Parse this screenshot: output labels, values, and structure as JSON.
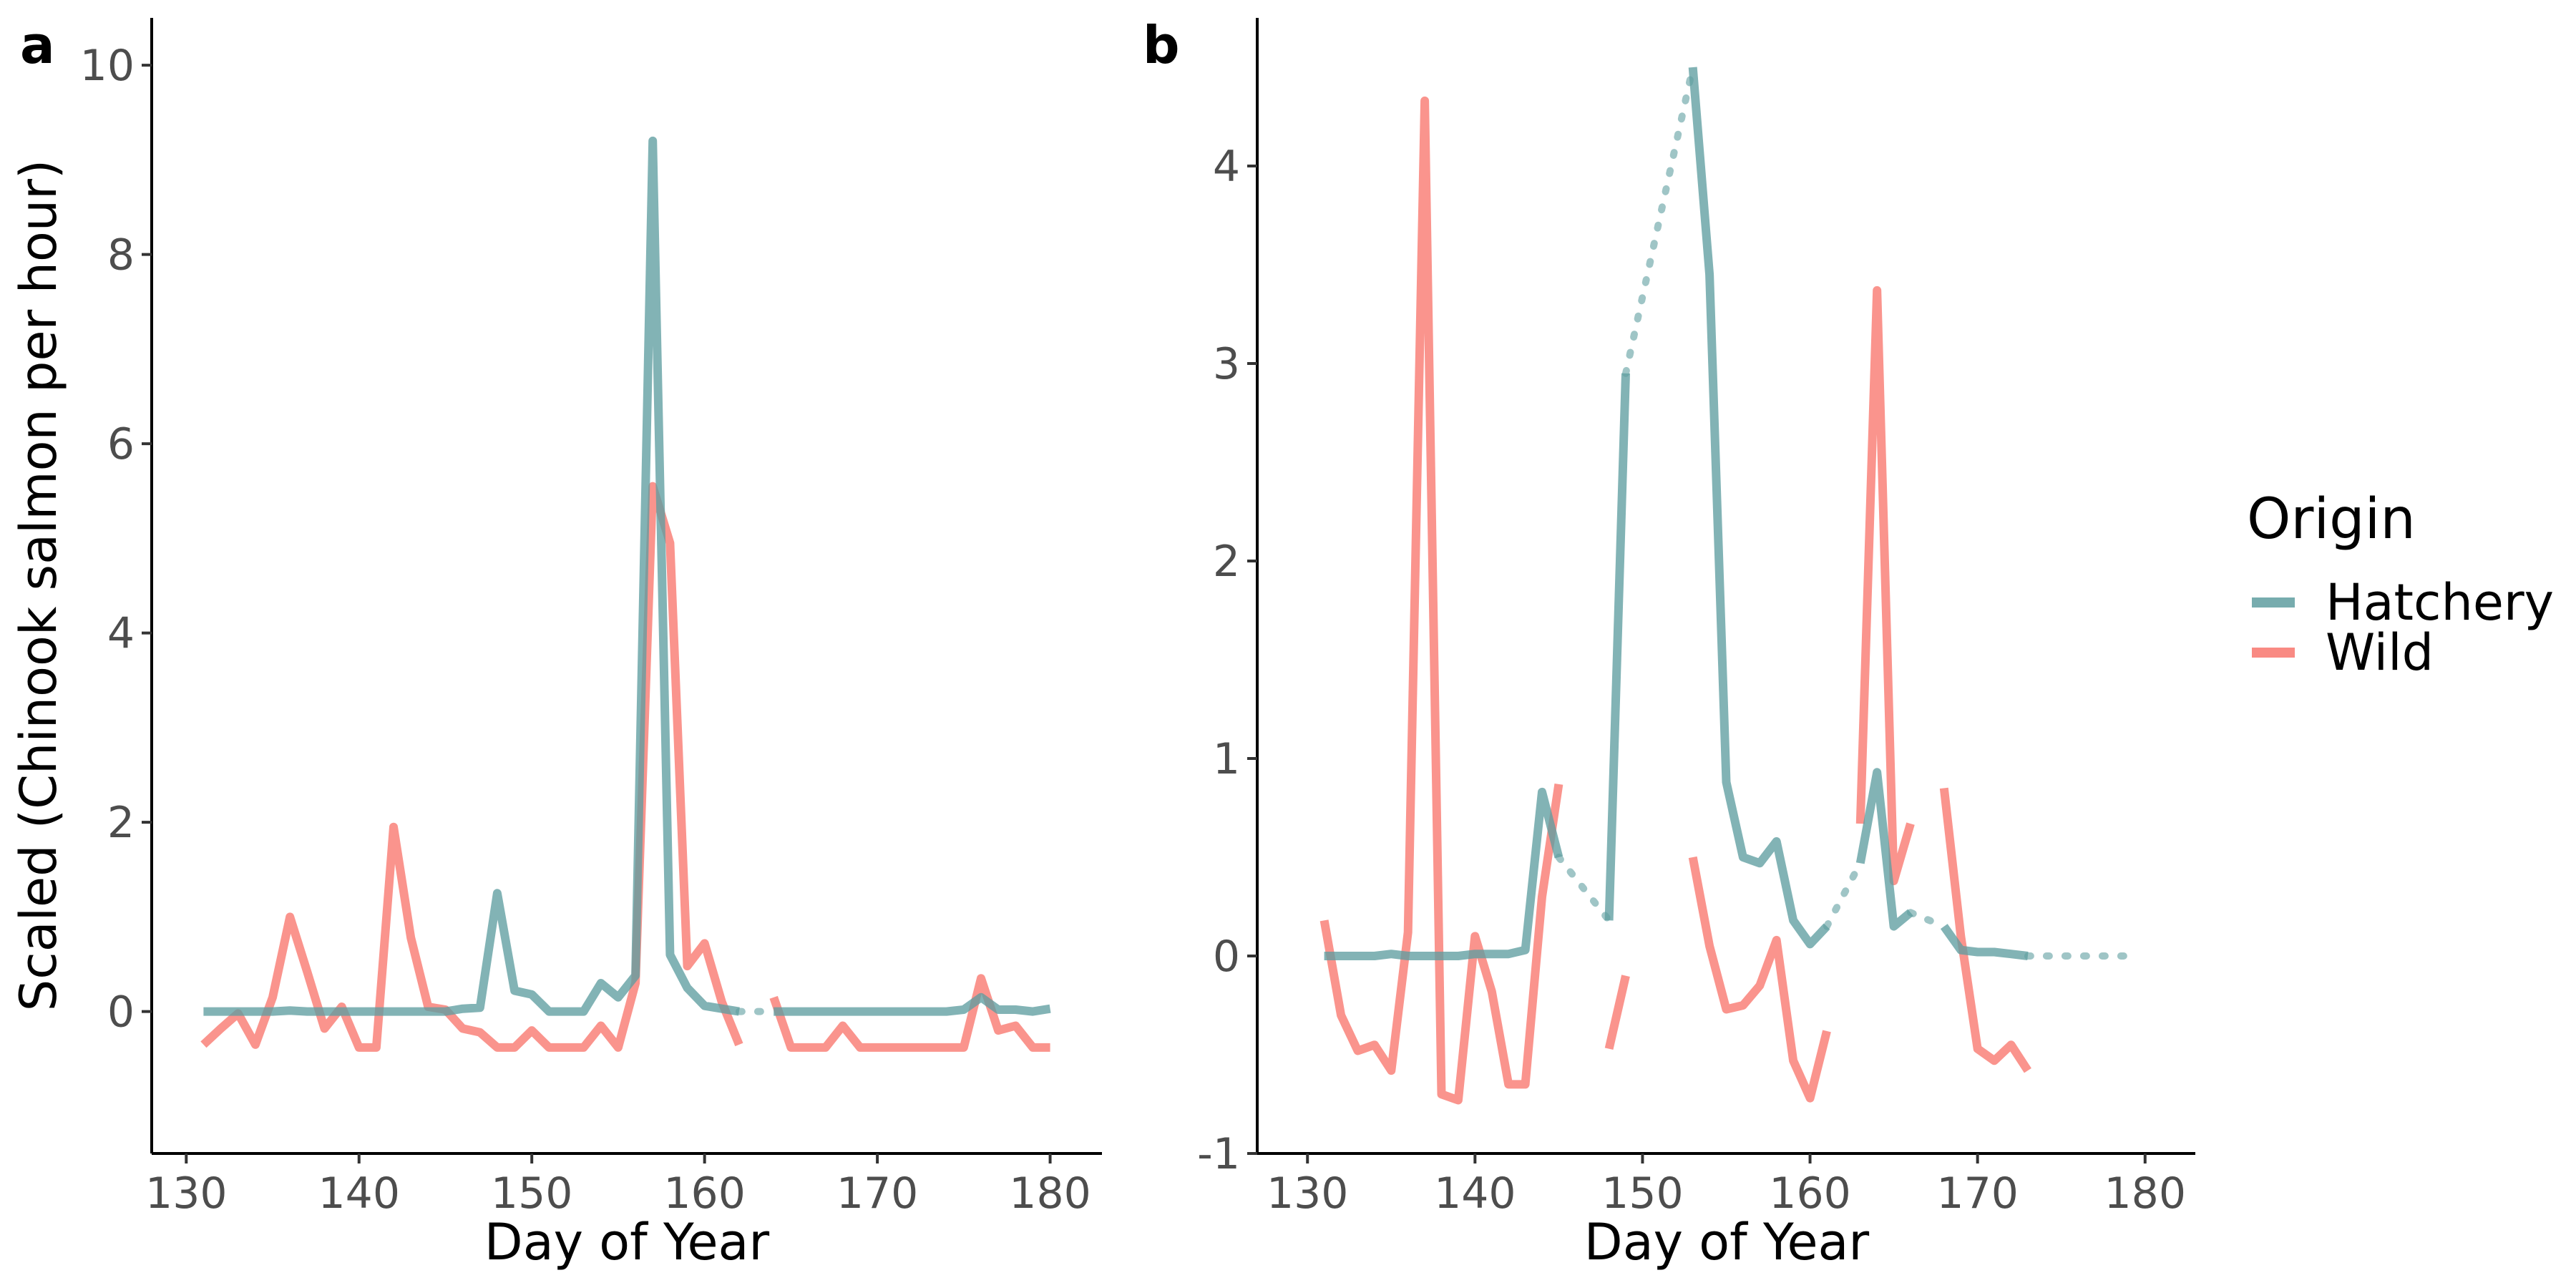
{
  "chart_data": [
    {
      "panel": "a",
      "type": "line",
      "xlabel": "Day of Year",
      "ylabel": "Scaled (Chinook salmon per hour)",
      "xlim": [
        128,
        183
      ],
      "ylim": [
        -1.5,
        10.5
      ],
      "xticks": [
        130,
        140,
        150,
        160,
        170,
        180
      ],
      "yticks": [
        0,
        2,
        4,
        6,
        8,
        10
      ],
      "series": [
        {
          "name": "Hatchery",
          "color": "#5f9ea0",
          "dash": "solid",
          "segments": [
            [
              [
                131,
                0.0
              ],
              [
                132,
                0.0
              ],
              [
                133,
                0.0
              ],
              [
                134,
                0.0
              ],
              [
                135,
                0.0
              ],
              [
                136,
                0.01
              ],
              [
                137,
                0.0
              ],
              [
                138,
                0.0
              ],
              [
                139,
                0.0
              ],
              [
                140,
                0.0
              ],
              [
                141,
                0.0
              ],
              [
                142,
                0.0
              ],
              [
                143,
                0.0
              ],
              [
                144,
                0.0
              ],
              [
                145,
                0.0
              ],
              [
                146,
                0.03
              ],
              [
                147,
                0.04
              ],
              [
                148,
                1.25
              ],
              [
                149,
                0.22
              ],
              [
                150,
                0.18
              ],
              [
                151,
                0.0
              ],
              [
                152,
                0.0
              ],
              [
                153,
                0.0
              ],
              [
                154,
                0.3
              ],
              [
                155,
                0.15
              ],
              [
                156,
                0.38
              ],
              [
                157,
                9.2
              ],
              [
                158,
                0.6
              ],
              [
                159,
                0.25
              ],
              [
                160,
                0.06
              ],
              [
                161,
                0.03
              ],
              [
                162,
                0.0
              ]
            ],
            [
              [
                164,
                0.0
              ],
              [
                165,
                0.0
              ],
              [
                166,
                0.0
              ],
              [
                167,
                0.0
              ],
              [
                168,
                0.0
              ],
              [
                169,
                0.0
              ],
              [
                170,
                0.0
              ],
              [
                171,
                0.0
              ],
              [
                172,
                0.0
              ],
              [
                173,
                0.0
              ],
              [
                174,
                0.0
              ],
              [
                175,
                0.02
              ],
              [
                176,
                0.15
              ],
              [
                177,
                0.02
              ],
              [
                178,
                0.02
              ],
              [
                179,
                0.0
              ],
              [
                180,
                0.03
              ]
            ]
          ]
        },
        {
          "name": "Hatchery",
          "color": "#5f9ea0",
          "dash": "dotted",
          "segments": [
            [
              [
                162,
                0.0
              ],
              [
                164,
                0.0
              ]
            ]
          ]
        },
        {
          "name": "Wild",
          "color": "#f8766d",
          "dash": "solid",
          "segments": [
            [
              [
                131,
                -0.35
              ],
              [
                132,
                -0.18
              ],
              [
                133,
                -0.02
              ],
              [
                134,
                -0.35
              ],
              [
                135,
                0.15
              ],
              [
                136,
                1.0
              ],
              [
                137,
                0.42
              ],
              [
                138,
                -0.18
              ],
              [
                139,
                0.05
              ],
              [
                140,
                -0.38
              ],
              [
                141,
                -0.38
              ],
              [
                142,
                1.95
              ],
              [
                143,
                0.78
              ],
              [
                144,
                0.05
              ],
              [
                145,
                0.02
              ],
              [
                146,
                -0.18
              ],
              [
                147,
                -0.22
              ],
              [
                148,
                -0.38
              ],
              [
                149,
                -0.38
              ],
              [
                150,
                -0.2
              ],
              [
                151,
                -0.38
              ],
              [
                152,
                -0.38
              ],
              [
                153,
                -0.38
              ],
              [
                154,
                -0.15
              ],
              [
                155,
                -0.38
              ],
              [
                156,
                0.3
              ],
              [
                157,
                5.55
              ],
              [
                158,
                4.95
              ],
              [
                159,
                0.48
              ],
              [
                160,
                0.72
              ],
              [
                161,
                0.1
              ],
              [
                162,
                -0.35
              ]
            ],
            [
              [
                164,
                0.15
              ],
              [
                165,
                -0.38
              ],
              [
                166,
                -0.38
              ],
              [
                167,
                -0.38
              ],
              [
                168,
                -0.15
              ],
              [
                169,
                -0.38
              ],
              [
                170,
                -0.38
              ],
              [
                171,
                -0.38
              ],
              [
                172,
                -0.38
              ],
              [
                173,
                -0.38
              ],
              [
                174,
                -0.38
              ],
              [
                175,
                -0.38
              ],
              [
                176,
                0.35
              ],
              [
                177,
                -0.2
              ],
              [
                178,
                -0.15
              ],
              [
                179,
                -0.38
              ],
              [
                180,
                -0.38
              ]
            ]
          ]
        }
      ]
    },
    {
      "panel": "b",
      "type": "line",
      "xlabel": "Day of Year",
      "ylabel": "",
      "xlim": [
        127,
        183
      ],
      "ylim": [
        -1.0,
        4.75
      ],
      "xticks": [
        130,
        140,
        150,
        160,
        170,
        180
      ],
      "yticks": [
        -1,
        0,
        1,
        2,
        3,
        4
      ],
      "series": [
        {
          "name": "Hatchery",
          "color": "#5f9ea0",
          "dash": "solid",
          "segments": [
            [
              [
                131,
                0.0
              ],
              [
                132,
                0.0
              ],
              [
                133,
                0.0
              ],
              [
                134,
                0.0
              ],
              [
                135,
                0.01
              ],
              [
                136,
                0.0
              ],
              [
                137,
                0.0
              ],
              [
                138,
                0.0
              ],
              [
                139,
                0.0
              ],
              [
                140,
                0.01
              ],
              [
                141,
                0.01
              ],
              [
                142,
                0.01
              ],
              [
                143,
                0.03
              ],
              [
                144,
                0.83
              ],
              [
                145,
                0.5
              ]
            ],
            [
              [
                148,
                0.18
              ],
              [
                149,
                2.95
              ]
            ],
            [
              [
                153,
                4.5
              ],
              [
                154,
                3.45
              ],
              [
                155,
                0.88
              ],
              [
                156,
                0.5
              ],
              [
                157,
                0.47
              ],
              [
                158,
                0.58
              ],
              [
                159,
                0.18
              ],
              [
                160,
                0.06
              ],
              [
                161,
                0.15
              ]
            ],
            [
              [
                163,
                0.47
              ],
              [
                164,
                0.93
              ],
              [
                165,
                0.15
              ],
              [
                166,
                0.22
              ]
            ],
            [
              [
                168,
                0.15
              ],
              [
                169,
                0.03
              ],
              [
                170,
                0.02
              ],
              [
                171,
                0.02
              ],
              [
                172,
                0.01
              ],
              [
                173,
                0.0
              ]
            ]
          ]
        },
        {
          "name": "Hatchery",
          "color": "#5f9ea0",
          "dash": "dotted",
          "segments": [
            [
              [
                145,
                0.5
              ],
              [
                148,
                0.18
              ]
            ],
            [
              [
                149,
                2.95
              ],
              [
                153,
                4.5
              ]
            ],
            [
              [
                161,
                0.15
              ],
              [
                163,
                0.47
              ]
            ],
            [
              [
                166,
                0.22
              ],
              [
                168,
                0.15
              ]
            ],
            [
              [
                173,
                0.0
              ],
              [
                179,
                0.0
              ]
            ]
          ]
        },
        {
          "name": "Wild",
          "color": "#f8766d",
          "dash": "solid",
          "segments": [
            [
              [
                131,
                0.18
              ],
              [
                132,
                -0.3
              ],
              [
                133,
                -0.48
              ],
              [
                134,
                -0.45
              ],
              [
                135,
                -0.58
              ],
              [
                136,
                0.12
              ],
              [
                137,
                4.33
              ],
              [
                138,
                -0.7
              ],
              [
                139,
                -0.73
              ],
              [
                140,
                0.1
              ],
              [
                141,
                -0.18
              ],
              [
                142,
                -0.65
              ],
              [
                143,
                -0.65
              ],
              [
                144,
                0.3
              ],
              [
                145,
                0.87
              ]
            ],
            [
              [
                148,
                -0.47
              ],
              [
                149,
                -0.1
              ]
            ],
            [
              [
                153,
                0.5
              ],
              [
                154,
                0.05
              ],
              [
                155,
                -0.27
              ],
              [
                156,
                -0.25
              ],
              [
                157,
                -0.15
              ],
              [
                158,
                0.08
              ],
              [
                159,
                -0.53
              ],
              [
                160,
                -0.72
              ],
              [
                161,
                -0.38
              ]
            ],
            [
              [
                163,
                0.67
              ],
              [
                164,
                3.37
              ],
              [
                165,
                0.38
              ],
              [
                166,
                0.67
              ]
            ],
            [
              [
                168,
                0.85
              ],
              [
                169,
                0.1
              ],
              [
                170,
                -0.47
              ],
              [
                171,
                -0.53
              ],
              [
                172,
                -0.45
              ],
              [
                173,
                -0.58
              ]
            ]
          ]
        }
      ]
    }
  ],
  "legend": {
    "title": "Origin",
    "items": [
      {
        "label": "Hatchery",
        "color": "#5f9ea0"
      },
      {
        "label": "Wild",
        "color": "#f8766d"
      }
    ]
  }
}
